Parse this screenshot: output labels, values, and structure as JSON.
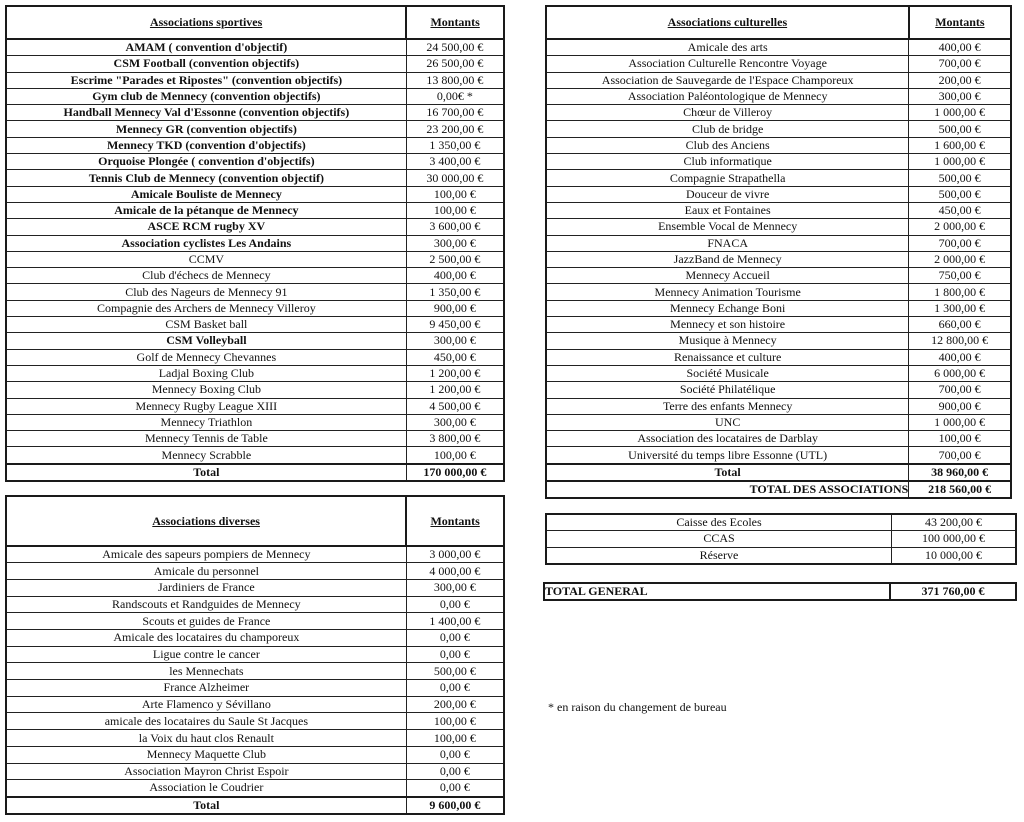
{
  "sportives": {
    "header": "Associations sportives",
    "amount_header": "Montants",
    "rows": [
      [
        "AMAM ( convention d'objectif)",
        "24 500,00 €",
        1
      ],
      [
        "CSM Football (convention objectifs)",
        "26 500,00 €",
        1
      ],
      [
        "Escrime \"Parades et Ripostes\" (convention objectifs)",
        "13 800,00 €",
        1
      ],
      [
        "Gym club de Mennecy (convention objectifs)",
        "0,00€ *",
        1
      ],
      [
        "Handball Mennecy Val d'Essonne (convention objectifs)",
        "16 700,00 €",
        1
      ],
      [
        "Mennecy GR (convention objectifs)",
        "23 200,00 €",
        1
      ],
      [
        "Mennecy TKD (convention d'objectifs)",
        "1 350,00 €",
        1
      ],
      [
        "Orquoise Plongée ( convention d'objectifs)",
        "3 400,00 €",
        1
      ],
      [
        "Tennis Club de Mennecy (convention objectif)",
        "30 000,00 €",
        1
      ],
      [
        "Amicale Bouliste de Mennecy",
        "100,00 €",
        1
      ],
      [
        "Amicale de la pétanque de Mennecy",
        "100,00 €",
        1
      ],
      [
        "ASCE RCM rugby XV",
        "3 600,00 €",
        1
      ],
      [
        "Association cyclistes Les Andains",
        "300,00 €",
        1
      ],
      [
        "CCMV",
        "2 500,00 €",
        0
      ],
      [
        "Club d'échecs de Mennecy",
        "400,00 €",
        0
      ],
      [
        "Club des Nageurs de Mennecy 91",
        "1 350,00 €",
        0
      ],
      [
        "Compagnie des Archers de Mennecy Villeroy",
        "900,00 €",
        0
      ],
      [
        "CSM Basket ball",
        "9 450,00 €",
        0
      ],
      [
        "CSM Volleyball",
        "300,00 €",
        1
      ],
      [
        "Golf de Mennecy Chevannes",
        "450,00 €",
        0
      ],
      [
        "Ladjal Boxing Club",
        "1 200,00 €",
        0
      ],
      [
        "Mennecy Boxing Club",
        "1 200,00 €",
        0
      ],
      [
        "Mennecy Rugby League XIII",
        "4 500,00 €",
        0
      ],
      [
        "Mennecy Triathlon",
        "300,00 €",
        0
      ],
      [
        "Mennecy Tennis de Table",
        "3 800,00 €",
        0
      ],
      [
        "Mennecy Scrabble",
        "100,00 €",
        0
      ]
    ],
    "total_label": "Total",
    "total": "170 000,00 €"
  },
  "culturelles": {
    "header": "Associations culturelles",
    "amount_header": "Montants",
    "rows": [
      [
        "Amicale des arts",
        "400,00 €"
      ],
      [
        "Association Culturelle Rencontre Voyage",
        "700,00 €"
      ],
      [
        "Association de Sauvegarde de l'Espace Champoreux",
        "200,00 €"
      ],
      [
        "Association Paléontologique de Mennecy",
        "300,00 €"
      ],
      [
        "Chœur de Villeroy",
        "1 000,00 €"
      ],
      [
        "Club de bridge",
        "500,00 €"
      ],
      [
        "Club des Anciens",
        "1 600,00 €"
      ],
      [
        "Club informatique",
        "1 000,00 €"
      ],
      [
        "Compagnie Strapathella",
        "500,00 €"
      ],
      [
        "Douceur de vivre",
        "500,00 €"
      ],
      [
        "Eaux et Fontaines",
        "450,00 €"
      ],
      [
        "Ensemble Vocal de Mennecy",
        "2 000,00 €"
      ],
      [
        "FNACA",
        "700,00 €"
      ],
      [
        "JazzBand de Mennecy",
        "2 000,00 €"
      ],
      [
        "Mennecy Accueil",
        "750,00 €"
      ],
      [
        "Mennecy Animation Tourisme",
        "1 800,00 €"
      ],
      [
        "Mennecy Echange Boni",
        "1 300,00 €"
      ],
      [
        "Mennecy et son histoire",
        "660,00 €"
      ],
      [
        "Musique à Mennecy",
        "12 800,00 €"
      ],
      [
        "Renaissance et culture",
        "400,00 €"
      ],
      [
        "Société Musicale",
        "6 000,00 €"
      ],
      [
        "Société Philatélique",
        "700,00 €"
      ],
      [
        "Terre des enfants Mennecy",
        "900,00 €"
      ],
      [
        "UNC",
        "1 000,00 €"
      ],
      [
        "Association des locataires de Darblay",
        "100,00 €"
      ],
      [
        "Université du temps libre Essonne (UTL)",
        "700,00 €"
      ]
    ],
    "total_label": "Total",
    "total": "38 960,00 €",
    "grand_label": "TOTAL DES ASSOCIATIONS",
    "grand": "218 560,00 €"
  },
  "diverses": {
    "header": "Associations diverses",
    "amount_header": "Montants",
    "rows": [
      [
        "Amicale des sapeurs pompiers de Mennecy",
        "3 000,00 €"
      ],
      [
        "Amicale du personnel",
        "4 000,00 €"
      ],
      [
        "Jardiniers de France",
        "300,00 €"
      ],
      [
        "Randscouts et Randguides de Mennecy",
        "0,00 €"
      ],
      [
        "Scouts et guides de France",
        "1 400,00 €"
      ],
      [
        "Amicale des locataires du champoreux",
        "0,00 €"
      ],
      [
        "Ligue contre le cancer",
        "0,00 €"
      ],
      [
        "les Mennechats",
        "500,00 €"
      ],
      [
        "France Alzheimer",
        "0,00 €"
      ],
      [
        "Arte Flamenco y Sévillano",
        "200,00 €"
      ],
      [
        "amicale des locataires du Saule St Jacques",
        "100,00 €"
      ],
      [
        "la Voix du haut clos Renault",
        "100,00 €"
      ],
      [
        "Mennecy Maquette Club",
        "0,00 €"
      ],
      [
        "Association Mayron Christ Espoir",
        "0,00 €"
      ],
      [
        "Association le Coudrier",
        "0,00 €"
      ]
    ],
    "total_label": "Total",
    "total": "9 600,00 €"
  },
  "autres": [
    [
      "Caisse des Ecoles",
      "43 200,00 €"
    ],
    [
      "CCAS",
      "100 000,00 €"
    ],
    [
      "Réserve",
      "10 000,00 €"
    ]
  ],
  "general": {
    "label": "TOTAL GENERAL",
    "value": "371 760,00 €"
  },
  "footnote": "* en raison du changement de bureau"
}
